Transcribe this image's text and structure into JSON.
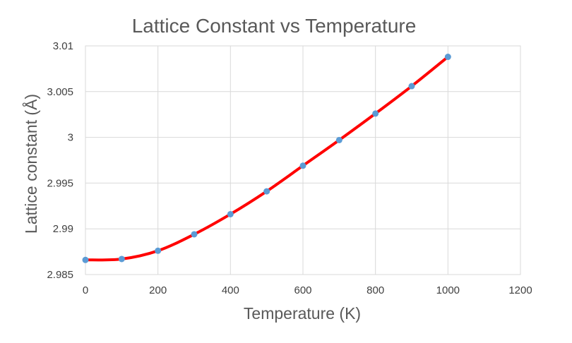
{
  "chart_data": {
    "type": "line",
    "title": "Lattice Constant vs Temperature",
    "xlabel": "Temperature (K)",
    "ylabel": "Lattice constant (Å)",
    "xlim": [
      0,
      1200
    ],
    "ylim": [
      2.985,
      3.01
    ],
    "xticks": [
      0,
      200,
      400,
      600,
      800,
      1000,
      1200
    ],
    "yticks": [
      2.985,
      2.99,
      2.995,
      3,
      3.005,
      3.01
    ],
    "xtick_labels": [
      "0",
      "200",
      "400",
      "600",
      "800",
      "1000",
      "1200"
    ],
    "ytick_labels": [
      "2.985",
      "2.99",
      "2.995",
      "3",
      "3.005",
      "3.01"
    ],
    "grid": true,
    "legend": "none",
    "series": [
      {
        "name": "Lattice constant",
        "line_color": "#ff0000",
        "marker_color": "#5b9bd5",
        "x": [
          0,
          100,
          200,
          300,
          400,
          500,
          600,
          700,
          800,
          900,
          1000
        ],
        "y": [
          2.9866,
          2.9867,
          2.9876,
          2.9894,
          2.9916,
          2.9941,
          2.9969,
          2.9997,
          3.0026,
          3.0056,
          3.0088
        ]
      }
    ]
  }
}
